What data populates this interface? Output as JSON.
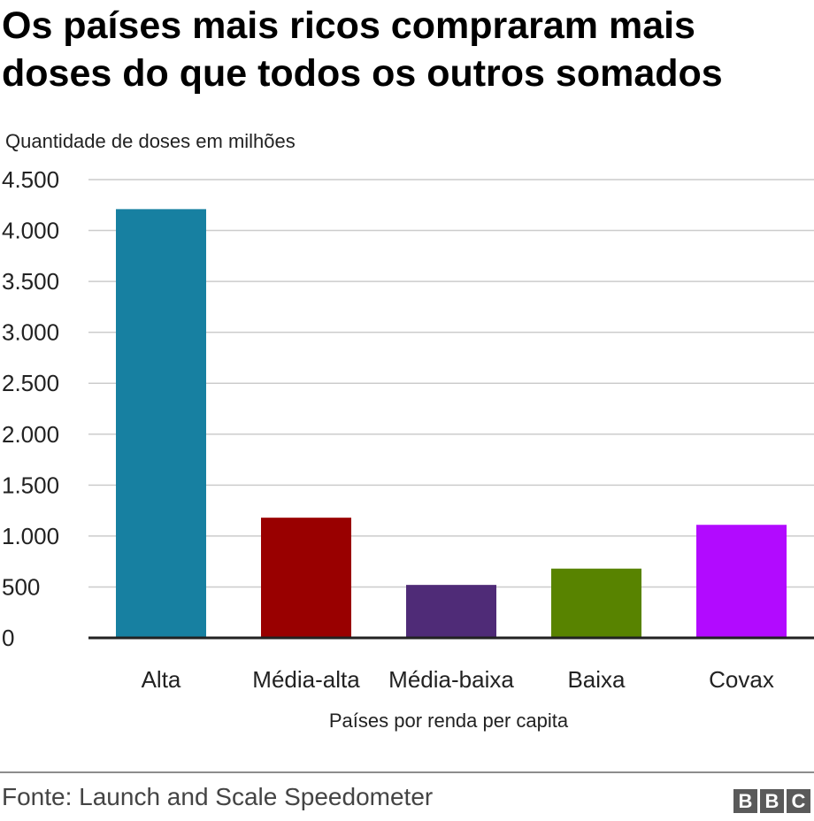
{
  "title": "Os países mais ricos compraram mais doses do que todos os outros somados",
  "subtitle": "Quantidade de doses em milhões",
  "source": "Fonte: Launch and Scale Speedometer",
  "logo": {
    "letters": [
      "B",
      "B",
      "C"
    ],
    "color": "#5a5a5a"
  },
  "chart_data": {
    "type": "bar",
    "title": "",
    "xlabel": "Países por renda per capita",
    "ylabel": "",
    "ylim": [
      0,
      4500
    ],
    "grid": true,
    "y_ticks": [
      0,
      500,
      1000,
      1500,
      2000,
      2500,
      3000,
      3500,
      4000,
      4500
    ],
    "y_tick_labels": [
      "0",
      "500",
      "1.000",
      "1.500",
      "2.000",
      "2.500",
      "3.000",
      "3.500",
      "4.000",
      "4.500"
    ],
    "categories": [
      "Alta",
      "Média-alta",
      "Média-baixa",
      "Baixa",
      "Covax"
    ],
    "values": [
      4210,
      1180,
      520,
      680,
      1110
    ],
    "colors": [
      "#1780a1",
      "#990000",
      "#4f2b77",
      "#588300",
      "#b20aff"
    ]
  }
}
